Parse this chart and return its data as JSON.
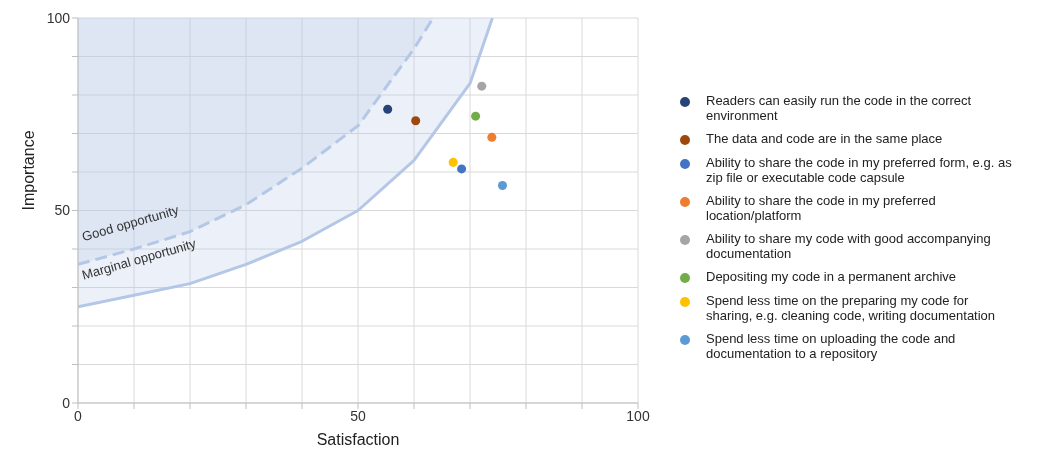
{
  "chart_data": {
    "type": "scatter",
    "xlabel": "Satisfaction",
    "ylabel": "Importance",
    "xlim": [
      0,
      100
    ],
    "ylim": [
      0,
      100
    ],
    "xticks": [
      0,
      {
        "value": 10,
        "label": null
      },
      {
        "value": 20,
        "label": null
      },
      {
        "value": 30,
        "label": null
      },
      {
        "value": 40,
        "label": null
      },
      50,
      {
        "value": 60,
        "label": null
      },
      {
        "value": 70,
        "label": null
      },
      {
        "value": 80,
        "label": null
      },
      {
        "value": 90,
        "label": null
      },
      100
    ],
    "yticks": [
      0,
      {
        "value": 10,
        "label": null
      },
      {
        "value": 20,
        "label": null
      },
      {
        "value": 30,
        "label": null
      },
      {
        "value": 40,
        "label": null
      },
      50,
      {
        "value": 60,
        "label": null
      },
      {
        "value": 70,
        "label": null
      },
      {
        "value": 80,
        "label": null
      },
      {
        "value": 90,
        "label": null
      },
      100
    ],
    "grid": true,
    "legend": "right",
    "marker": "circle",
    "series": [
      {
        "type": "line",
        "marker": "none",
        "color": "#b4c7e7",
        "line_style": "solid",
        "x": [
          0,
          10,
          20,
          30,
          40,
          50,
          60,
          70,
          74
        ],
        "values": [
          25,
          28,
          31,
          36,
          42,
          50,
          63,
          83,
          100
        ]
      },
      {
        "type": "line",
        "marker": "none",
        "color": "#b4c7e7",
        "line_style": "dashed",
        "x": [
          0,
          10,
          20,
          30,
          40,
          50,
          60,
          63.4
        ],
        "values": [
          36,
          40,
          44.5,
          51.5,
          61,
          72,
          92,
          100
        ]
      },
      {
        "name": "Readers can easily run the code in the correct environment",
        "color": "#264478",
        "x": [
          55.3
        ],
        "values": [
          76.3
        ]
      },
      {
        "name": "The data and code are in the same place",
        "color": "#9e480e",
        "x": [
          60.3
        ],
        "values": [
          73.3
        ]
      },
      {
        "name": "Ability to share the code in my preferred form, e.g. as zip file or executable code capsule",
        "color": "#4472c4",
        "x": [
          68.5
        ],
        "values": [
          60.8
        ]
      },
      {
        "name": "Ability to share the code in my preferred location/platform",
        "color": "#ed7d31",
        "x": [
          73.9
        ],
        "values": [
          69
        ]
      },
      {
        "name": "Ability to share my code with good accompanying documentation",
        "color": "#a5a5a5",
        "x": [
          72.1
        ],
        "values": [
          82.3
        ]
      },
      {
        "name": "Depositing my code in a permanent archive",
        "color": "#70ad47",
        "x": [
          71
        ],
        "values": [
          74.5
        ]
      },
      {
        "name": "Spend less time on the preparing my code for sharing, e.g. cleaning code, writing documentation",
        "color": "#ffc000",
        "x": [
          67
        ],
        "values": [
          62.5
        ]
      },
      {
        "name": "Spend less time on uploading the code and documentation to a repository",
        "color": "#5b9bd5",
        "x": [
          75.8
        ],
        "values": [
          56.5
        ]
      }
    ],
    "annotations": [
      "Good opportunity",
      "Marginal opportunity"
    ]
  }
}
